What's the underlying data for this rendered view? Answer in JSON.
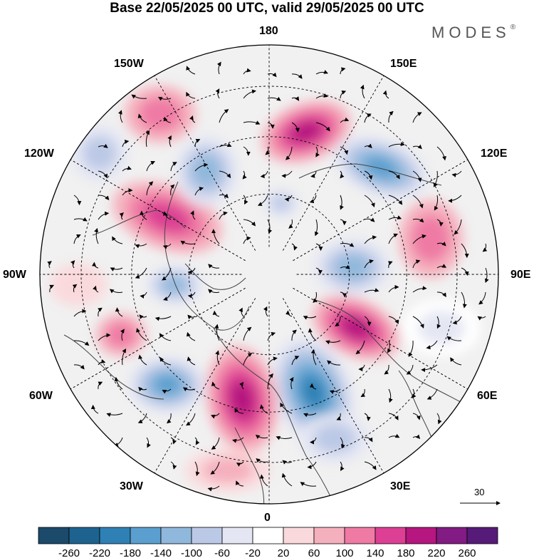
{
  "title": "Base 22/05/2025 00 UTC, valid 29/05/2025 00 UTC",
  "brand": {
    "name": "MODES",
    "mark": "®"
  },
  "longitude_labels": {
    "top": "180",
    "bottom": "0",
    "left": "90W",
    "right": "90E",
    "upper_left_1": "150W",
    "upper_left_2": "120W",
    "lower_left_1": "60W",
    "lower_left_2": "30W",
    "upper_right_1": "150E",
    "upper_right_2": "120E",
    "lower_right_1": "60E",
    "lower_right_2": "30E"
  },
  "vector_reference": {
    "value": "30"
  },
  "colorbar": {
    "ticks": [
      "-260",
      "-220",
      "-180",
      "-140",
      "-100",
      "-60",
      "-20",
      "20",
      "60",
      "100",
      "140",
      "180",
      "220",
      "260"
    ],
    "colors": [
      "#1b4a6b",
      "#1e6390",
      "#2f81b5",
      "#5a9fcf",
      "#8fb8dc",
      "#bcc9e6",
      "#e4e6f3",
      "#ffffff",
      "#fad9dc",
      "#f5b0bd",
      "#ef7aa4",
      "#dc3f93",
      "#b5167f",
      "#821b83",
      "#561b78"
    ]
  },
  "colors": {
    "map_bg": "#f0f0f0",
    "coast": "#444444",
    "grid": "#000000"
  }
}
